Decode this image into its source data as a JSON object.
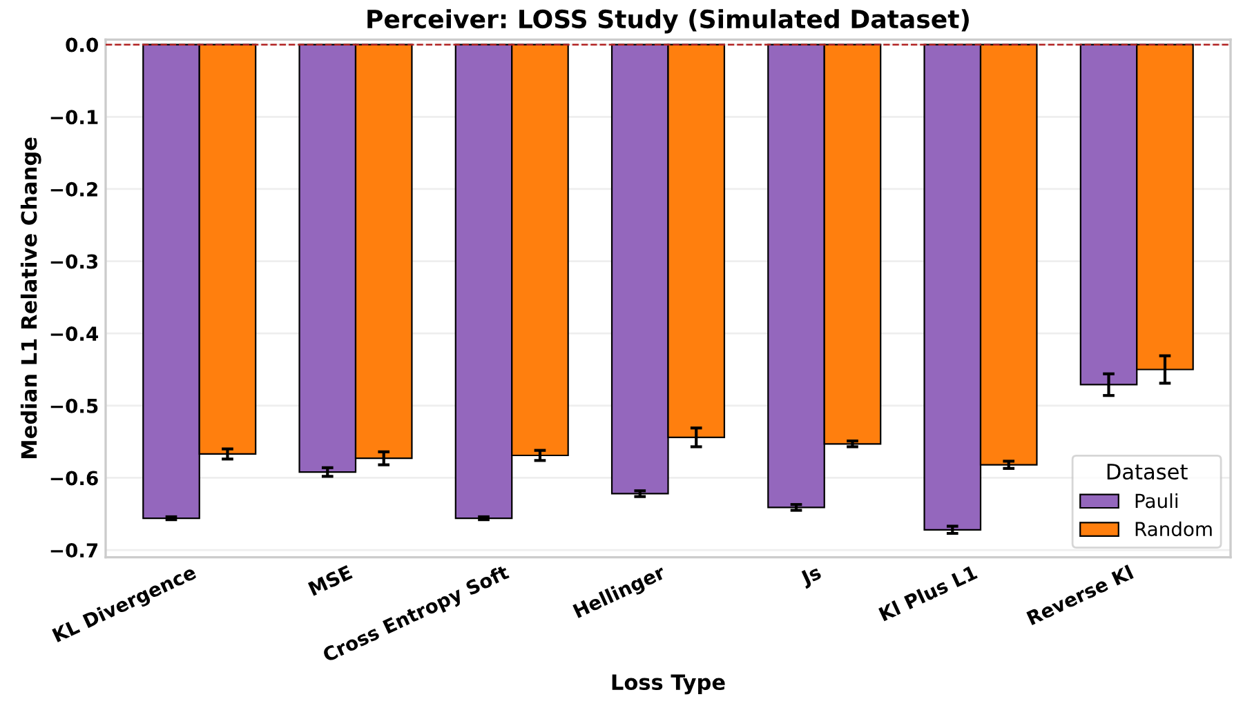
{
  "chart_data": {
    "type": "bar",
    "title": "Perceiver: LOSS Study (Simulated Dataset)",
    "xlabel": "Loss Type",
    "ylabel": "Median L1 Relative Change",
    "legend_title": "Dataset",
    "categories": [
      "KL Divergence",
      "MSE",
      "Cross Entropy Soft",
      "Hellinger",
      "Js",
      "Kl Plus L1",
      "Reverse Kl"
    ],
    "series": [
      {
        "name": "Pauli",
        "color": "#9467bd",
        "values": [
          -0.656,
          -0.592,
          -0.656,
          -0.622,
          -0.641,
          -0.672,
          -0.471
        ],
        "errors": [
          0.002,
          0.006,
          0.002,
          0.004,
          0.004,
          0.005,
          0.015
        ]
      },
      {
        "name": "Random",
        "color": "#ff7f0e",
        "values": [
          -0.567,
          -0.573,
          -0.569,
          -0.544,
          -0.553,
          -0.582,
          -0.45
        ],
        "errors": [
          0.007,
          0.009,
          0.007,
          0.013,
          0.004,
          0.005,
          0.019
        ]
      }
    ],
    "ylim": [
      -0.71,
      0.007
    ],
    "yticks": [
      {
        "value": 0.0,
        "label": "0.0"
      },
      {
        "value": -0.1,
        "label": "−0.1"
      },
      {
        "value": -0.2,
        "label": "−0.2"
      },
      {
        "value": -0.3,
        "label": "−0.3"
      },
      {
        "value": -0.4,
        "label": "−0.4"
      },
      {
        "value": -0.5,
        "label": "−0.5"
      },
      {
        "value": -0.6,
        "label": "−0.6"
      },
      {
        "value": -0.7,
        "label": "−0.7"
      }
    ],
    "ref_lines": [
      {
        "axis": "y",
        "value": 0,
        "label": null,
        "color": "#b22222",
        "line_style": "dashed"
      }
    ],
    "grid": "y",
    "legend": "bottom right"
  }
}
